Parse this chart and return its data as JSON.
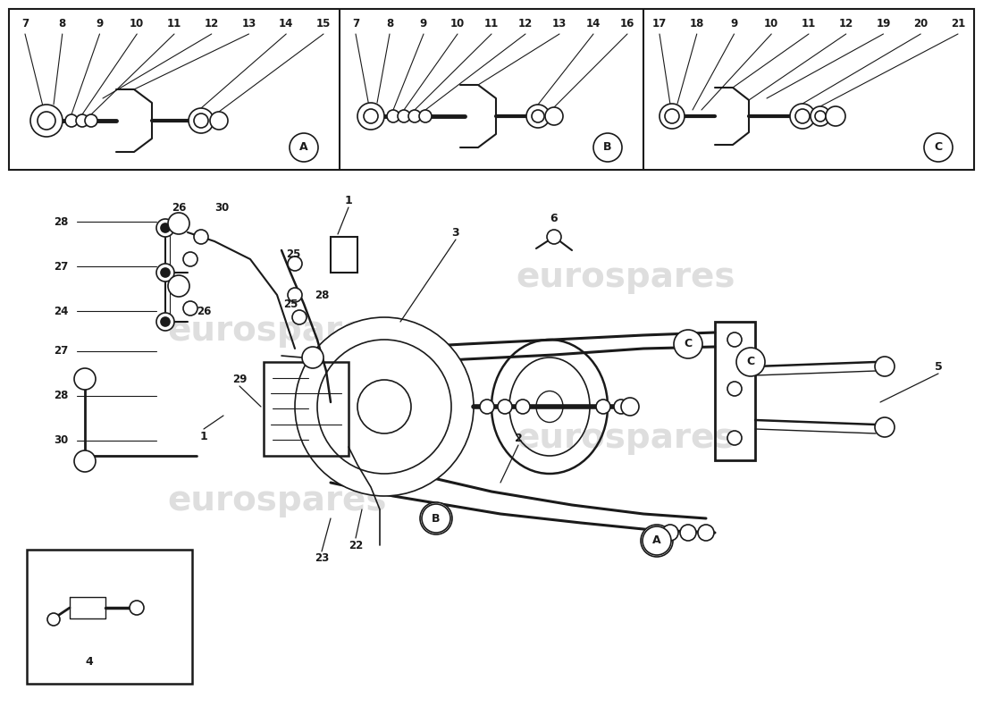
{
  "bg_color": "#ffffff",
  "line_color": "#1a1a1a",
  "watermark_text": "eurospares",
  "watermark_color": "#c8c8c8",
  "panel_A_nums": [
    "7",
    "8",
    "9",
    "10",
    "11",
    "12",
    "13",
    "14",
    "15"
  ],
  "panel_B_nums": [
    "7",
    "8",
    "9",
    "10",
    "11",
    "12",
    "13",
    "14",
    "16"
  ],
  "panel_C_nums": [
    "17",
    "18",
    "9",
    "10",
    "11",
    "12",
    "19",
    "20",
    "21"
  ],
  "figsize": [
    11.0,
    8.0
  ],
  "dpi": 100
}
